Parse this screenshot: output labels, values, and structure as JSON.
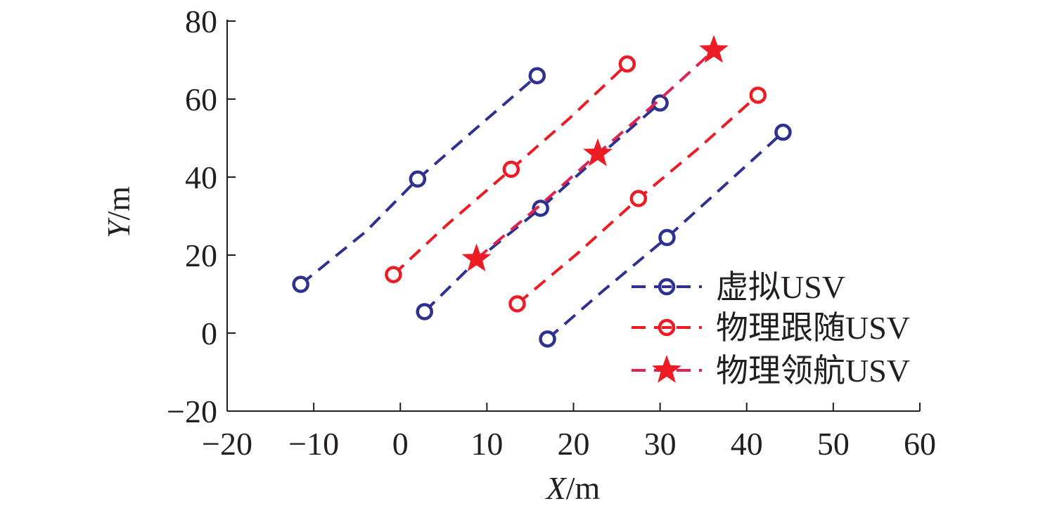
{
  "chart_data": {
    "type": "scatter",
    "title": "",
    "xlabel_italic": "X",
    "xlabel_unit": "/m",
    "ylabel_italic": "Y",
    "ylabel_unit": "/m",
    "xlim": [
      -20,
      60
    ],
    "ylim": [
      -20,
      80
    ],
    "xticks": [
      -20,
      -10,
      0,
      10,
      20,
      30,
      40,
      50,
      60
    ],
    "yticks": [
      -20,
      0,
      20,
      40,
      60,
      80
    ],
    "xtick_labels": [
      "−20",
      "−10",
      "0",
      "10",
      "20",
      "30",
      "40",
      "50",
      "60"
    ],
    "ytick_labels": [
      "−20",
      "0",
      "20",
      "40",
      "60",
      "80"
    ],
    "grid": false,
    "legend_position": "bottom-right",
    "series": [
      {
        "name": "虚拟USV",
        "color": "#2e3192",
        "marker": "circle",
        "line": "dashed",
        "paths": [
          [
            [
              -11.5,
              12.5
            ],
            [
              -4,
              26
            ],
            [
              2,
              39.5
            ],
            [
              8.5,
              52
            ],
            [
              15.8,
              66
            ]
          ],
          [
            [
              2.8,
              5.5
            ],
            [
              9,
              19
            ],
            [
              16.2,
              32
            ],
            [
              23,
              45.5
            ],
            [
              30,
              59
            ]
          ],
          [
            [
              17,
              -1.5
            ],
            [
              23.5,
              11
            ],
            [
              30.8,
              24.5
            ],
            [
              37.5,
              38
            ],
            [
              44.2,
              51.5
            ]
          ]
        ],
        "markers": [
          [
            -11.5,
            12.5
          ],
          [
            2,
            39.5
          ],
          [
            15.8,
            66
          ],
          [
            2.8,
            5.5
          ],
          [
            16.2,
            32
          ],
          [
            30,
            59
          ],
          [
            17,
            -1.5
          ],
          [
            30.8,
            24.5
          ],
          [
            44.2,
            51.5
          ]
        ]
      },
      {
        "name": "物理跟随USV",
        "color": "#ed1c24",
        "marker": "circle",
        "line": "dashed",
        "paths": [
          [
            [
              -0.8,
              15
            ],
            [
              5.5,
              28
            ],
            [
              12.8,
              42
            ],
            [
              19.5,
              55
            ],
            [
              26.2,
              69
            ]
          ],
          [
            [
              13.5,
              7.5
            ],
            [
              20.5,
              20.5
            ],
            [
              27.5,
              34.5
            ],
            [
              34.5,
              47.5
            ],
            [
              41.3,
              61
            ]
          ]
        ],
        "markers": [
          [
            -0.8,
            15
          ],
          [
            12.8,
            42
          ],
          [
            26.2,
            69
          ],
          [
            13.5,
            7.5
          ],
          [
            27.5,
            34.5
          ],
          [
            41.3,
            61
          ]
        ]
      },
      {
        "name": "物理领航USV",
        "color": "#ed1c24",
        "marker": "star",
        "line": "dashed",
        "line_color": "#e0234e",
        "paths": [
          [
            [
              8.8,
              19
            ],
            [
              16,
              32.5
            ],
            [
              22.8,
              46
            ],
            [
              29.5,
              59
            ],
            [
              36.2,
              72.5
            ]
          ]
        ],
        "markers": [
          [
            8.8,
            19
          ],
          [
            22.8,
            46
          ],
          [
            36.2,
            72.5
          ]
        ]
      }
    ]
  }
}
